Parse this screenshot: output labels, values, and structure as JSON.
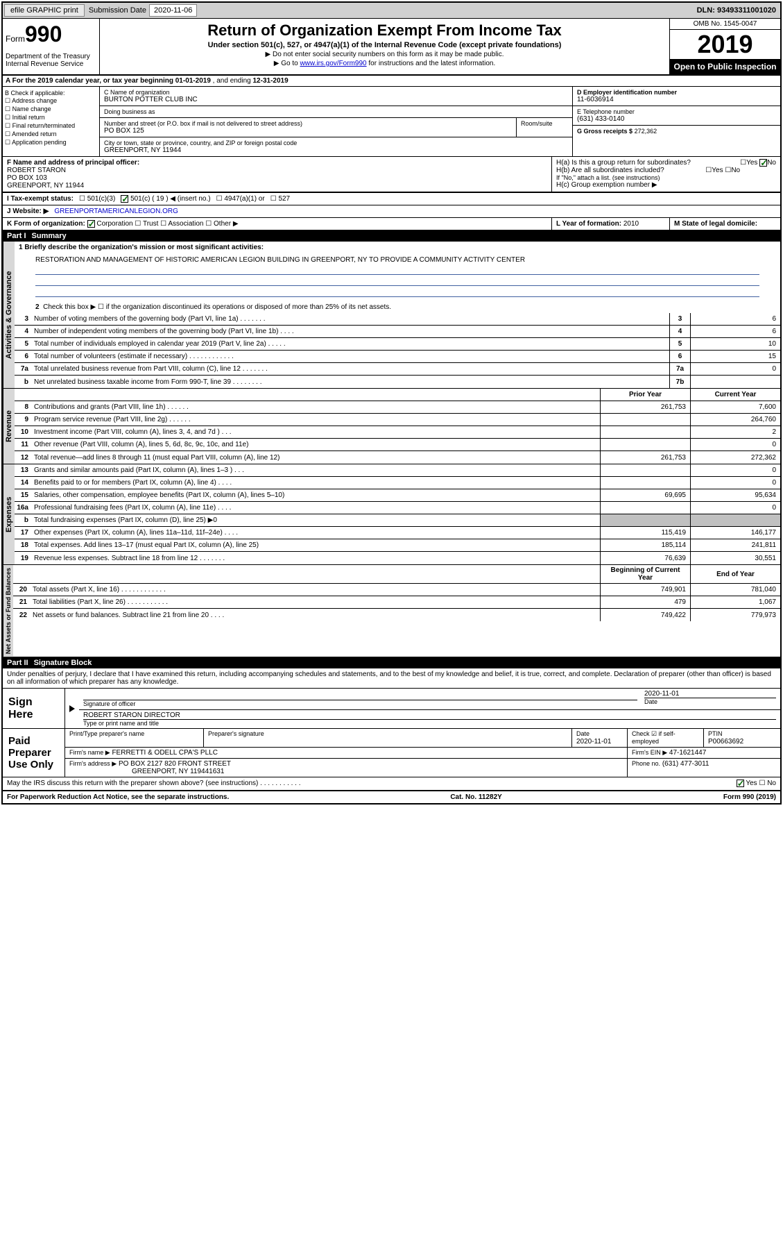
{
  "topbar": {
    "efile": "efile GRAPHIC print",
    "sub_label": "Submission Date",
    "sub_date": "2020-11-06",
    "dln_label": "DLN:",
    "dln": "93493311001020"
  },
  "header": {
    "form_word": "Form",
    "form_num": "990",
    "dept": "Department of the Treasury\nInternal Revenue Service",
    "title": "Return of Organization Exempt From Income Tax",
    "subtitle": "Under section 501(c), 527, or 4947(a)(1) of the Internal Revenue Code (except private foundations)",
    "line1": "▶ Do not enter social security numbers on this form as it may be made public.",
    "line2_pre": "▶ Go to ",
    "line2_link": "www.irs.gov/Form990",
    "line2_post": " for instructions and the latest information.",
    "omb": "OMB No. 1545-0047",
    "year": "2019",
    "inspect": "Open to Public Inspection"
  },
  "lineA": {
    "text_pre": "A For the 2019 calendar year, or tax year beginning ",
    "begin": "01-01-2019",
    "mid": " , and ending ",
    "end": "12-31-2019"
  },
  "boxB": {
    "title": "B Check if applicable:",
    "items": [
      "Address change",
      "Name change",
      "Initial return",
      "Final return/terminated",
      "Amended return",
      "Application pending"
    ]
  },
  "boxC": {
    "name_label": "C Name of organization",
    "name": "BURTON POTTER CLUB INC",
    "dba_label": "Doing business as",
    "addr_label": "Number and street (or P.O. box if mail is not delivered to street address)",
    "room_label": "Room/suite",
    "addr": "PO BOX 125",
    "city_label": "City or town, state or province, country, and ZIP or foreign postal code",
    "city": "GREENPORT, NY  11944"
  },
  "boxD": {
    "label": "D Employer identification number",
    "val": "11-6036914"
  },
  "boxE": {
    "label": "E Telephone number",
    "val": "(631) 433-0140"
  },
  "boxG": {
    "label": "G Gross receipts $",
    "val": "272,362"
  },
  "boxF": {
    "label": "F  Name and address of principal officer:",
    "name": "ROBERT STARON",
    "addr1": "PO BOX 103",
    "addr2": "GREENPORT, NY  11944"
  },
  "boxH": {
    "a_label": "H(a)  Is this a group return for subordinates?",
    "a_yes": "Yes",
    "a_no": "No",
    "b_label": "H(b)  Are all subordinates included?",
    "b_yes": "Yes",
    "b_no": "No",
    "b_note": "If \"No,\" attach a list. (see instructions)",
    "c_label": "H(c)  Group exemption number ▶"
  },
  "boxI": {
    "label": "I  Tax-exempt status:",
    "opts": [
      "501(c)(3)",
      "501(c) ( 19 ) ◀ (insert no.)",
      "4947(a)(1) or",
      "527"
    ]
  },
  "boxJ": {
    "label": "J   Website: ▶",
    "val": "GREENPORTAMERICANLEGION.ORG"
  },
  "boxK": {
    "label": "K Form of organization:",
    "opts": [
      "Corporation",
      "Trust",
      "Association",
      "Other ▶"
    ]
  },
  "boxL": {
    "label": "L Year of formation:",
    "val": "2010"
  },
  "boxM": {
    "label": "M State of legal domicile:"
  },
  "part1": {
    "header_num": "Part I",
    "header_title": "Summary",
    "mission_label": "1  Briefly describe the organization's mission or most significant activities:",
    "mission": "RESTORATION AND MANAGEMENT OF HISTORIC AMERICAN LEGION BUILDING IN GREENPORT, NY TO PROVIDE A COMMUNITY ACTIVITY CENTER",
    "line2": "Check this box ▶ ☐  if the organization discontinued its operations or disposed of more than 25% of its net assets.",
    "sections": {
      "gov": "Activities & Governance",
      "rev": "Revenue",
      "exp": "Expenses",
      "net": "Net Assets or Fund Balances"
    },
    "col_py": "Prior Year",
    "col_cy": "Current Year",
    "col_begin": "Beginning of Current Year",
    "col_end": "End of Year",
    "rows_gov": [
      {
        "n": "3",
        "d": "Number of voting members of the governing body (Part VI, line 1a)  .    .    .    .    .    .    .",
        "box": "3",
        "v": "6"
      },
      {
        "n": "4",
        "d": "Number of independent voting members of the governing body (Part VI, line 1b)  .    .    .    .",
        "box": "4",
        "v": "6"
      },
      {
        "n": "5",
        "d": "Total number of individuals employed in calendar year 2019 (Part V, line 2a)  .    .    .    .    .",
        "box": "5",
        "v": "10"
      },
      {
        "n": "6",
        "d": "Total number of volunteers (estimate if necessary)    .    .    .    .    .    .    .    .    .    .    .    .",
        "box": "6",
        "v": "15"
      },
      {
        "n": "7a",
        "d": "Total unrelated business revenue from Part VIII, column (C), line 12  .    .    .    .    .    .    .",
        "box": "7a",
        "v": "0"
      },
      {
        "n": "b",
        "d": "Net unrelated business taxable income from Form 990-T, line 39    .    .    .    .    .    .    .    .",
        "box": "7b",
        "v": ""
      }
    ],
    "rows_rev": [
      {
        "n": "8",
        "d": "Contributions and grants (Part VIII, line 1h)    .    .    .    .    .    .",
        "py": "261,753",
        "cy": "7,600"
      },
      {
        "n": "9",
        "d": "Program service revenue (Part VIII, line 2g)   .    .    .    .    .    .",
        "py": "",
        "cy": "264,760"
      },
      {
        "n": "10",
        "d": "Investment income (Part VIII, column (A), lines 3, 4, and 7d )    .    .    .",
        "py": "",
        "cy": "2"
      },
      {
        "n": "11",
        "d": "Other revenue (Part VIII, column (A), lines 5, 6d, 8c, 9c, 10c, and 11e)",
        "py": "",
        "cy": "0"
      },
      {
        "n": "12",
        "d": "Total revenue—add lines 8 through 11 (must equal Part VIII, column (A), line 12)",
        "py": "261,753",
        "cy": "272,362"
      }
    ],
    "rows_exp": [
      {
        "n": "13",
        "d": "Grants and similar amounts paid (Part IX, column (A), lines 1–3 )  .    .    .",
        "py": "",
        "cy": "0"
      },
      {
        "n": "14",
        "d": "Benefits paid to or for members (Part IX, column (A), line 4)  .    .    .    .",
        "py": "",
        "cy": "0"
      },
      {
        "n": "15",
        "d": "Salaries, other compensation, employee benefits (Part IX, column (A), lines 5–10)",
        "py": "69,695",
        "cy": "95,634"
      },
      {
        "n": "16a",
        "d": "Professional fundraising fees (Part IX, column (A), line 11e)  .    .    .    .",
        "py": "",
        "cy": "0"
      },
      {
        "n": "b",
        "d": "Total fundraising expenses (Part IX, column (D), line 25) ▶0",
        "py": "grey",
        "cy": "grey"
      },
      {
        "n": "17",
        "d": "Other expenses (Part IX, column (A), lines 11a–11d, 11f–24e)    .    .    .    .",
        "py": "115,419",
        "cy": "146,177"
      },
      {
        "n": "18",
        "d": "Total expenses. Add lines 13–17 (must equal Part IX, column (A), line 25)",
        "py": "185,114",
        "cy": "241,811"
      },
      {
        "n": "19",
        "d": "Revenue less expenses. Subtract line 18 from line 12  .    .    .    .    .    .    .",
        "py": "76,639",
        "cy": "30,551"
      }
    ],
    "rows_net": [
      {
        "n": "20",
        "d": "Total assets (Part X, line 16)  .    .    .    .    .    .    .    .    .    .    .    .",
        "py": "749,901",
        "cy": "781,040"
      },
      {
        "n": "21",
        "d": "Total liabilities (Part X, line 26)  .    .    .    .    .    .    .    .    .    .    .",
        "py": "479",
        "cy": "1,067"
      },
      {
        "n": "22",
        "d": "Net assets or fund balances. Subtract line 21 from line 20   .    .    .    .",
        "py": "749,422",
        "cy": "779,973"
      }
    ]
  },
  "part2": {
    "header_num": "Part II",
    "header_title": "Signature Block",
    "perjury": "Under penalties of perjury, I declare that I have examined this return, including accompanying schedules and statements, and to the best of my knowledge and belief, it is true, correct, and complete. Declaration of preparer (other than officer) is based on all information of which preparer has any knowledge.",
    "sign_here": "Sign Here",
    "sig_officer": "Signature of officer",
    "sig_date_label": "Date",
    "sig_date": "2020-11-01",
    "sig_name": "ROBERT STARON  DIRECTOR",
    "sig_type": "Type or print name and title",
    "paid": "Paid Preparer Use Only",
    "prep_name_label": "Print/Type preparer's name",
    "prep_sig_label": "Preparer's signature",
    "prep_date_label": "Date",
    "prep_date": "2020-11-01",
    "prep_check": "Check ☑ if self-employed",
    "ptin_label": "PTIN",
    "ptin": "P00663692",
    "firm_name_label": "Firm's name    ▶",
    "firm_name": "FERRETTI & ODELL CPA'S PLLC",
    "firm_ein_label": "Firm's EIN ▶",
    "firm_ein": "47-1621447",
    "firm_addr_label": "Firm's address ▶",
    "firm_addr": "PO BOX 2127 820 FRONT STREET",
    "firm_city": "GREENPORT, NY  119441631",
    "phone_label": "Phone no.",
    "phone": "(631) 477-3011",
    "may_irs": "May the IRS discuss this return with the preparer shown above? (see instructions)    .    .    .    .    .    .    .    .    .    .    .",
    "yes": "Yes",
    "no": "No"
  },
  "footer": {
    "left": "For Paperwork Reduction Act Notice, see the separate instructions.",
    "mid": "Cat. No. 11282Y",
    "right": "Form 990 (2019)"
  }
}
